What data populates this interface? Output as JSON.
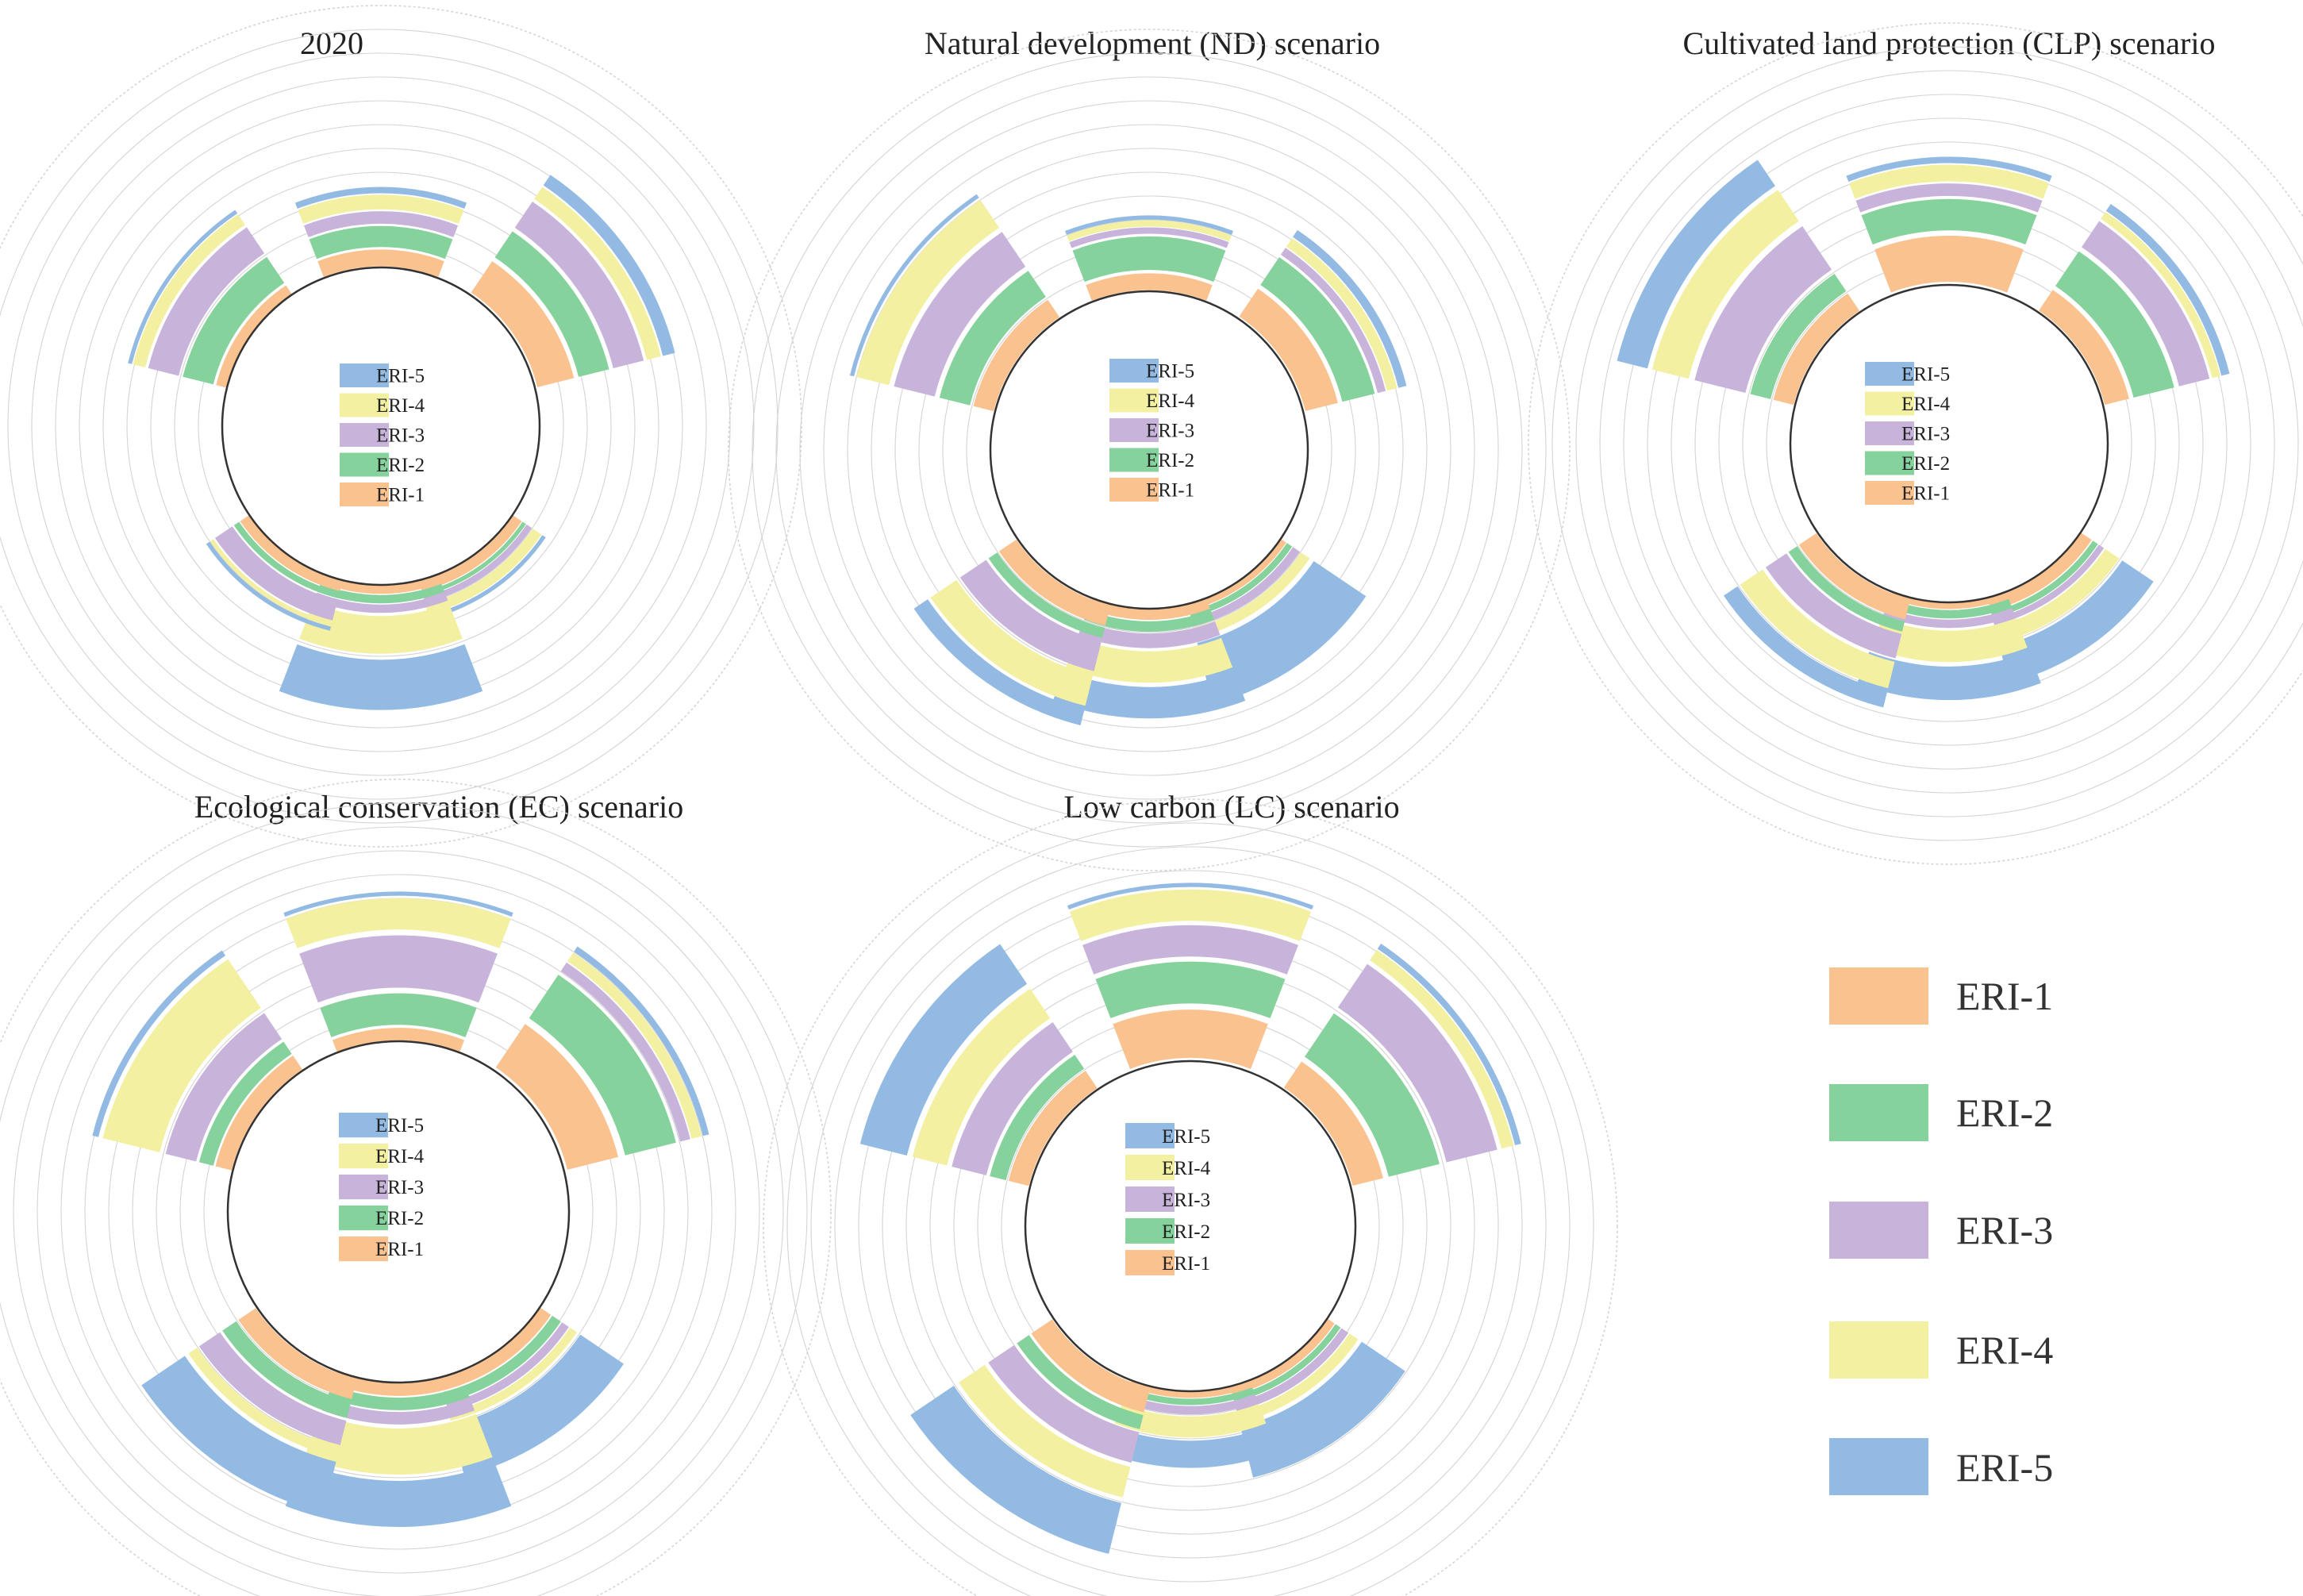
{
  "legend": [
    {
      "key": "ERI-1",
      "label": "ERI-1",
      "color": "#F9C28F"
    },
    {
      "key": "ERI-2",
      "label": "ERI-2",
      "color": "#86D29D"
    },
    {
      "key": "ERI-3",
      "label": "ERI-3",
      "color": "#C8B4DA"
    },
    {
      "key": "ERI-4",
      "label": "ERI-4",
      "color": "#F3F0A2"
    },
    {
      "key": "ERI-5",
      "label": "ERI-5",
      "color": "#92BAE3"
    }
  ],
  "chart_data": [
    {
      "type": "radial-stacked-bar",
      "title": "2020",
      "series": [
        "ERI-1",
        "ERI-2",
        "ERI-3",
        "ERI-4",
        "ERI-5"
      ],
      "sectors": [
        {
          "values": [
            0.8,
            1.0,
            0.6,
            0.7,
            0.3
          ]
        },
        {
          "values": [
            1.8,
            1.5,
            1.5,
            0.7,
            0.6
          ]
        },
        {
          "values": [
            0.5,
            0.2,
            0.3,
            0.5,
            0.2
          ]
        },
        {
          "values": [
            0.4,
            0.4,
            0.4,
            1.8,
            2.4
          ]
        },
        {
          "values": [
            0.5,
            0.3,
            1.0,
            0.2,
            0.2
          ]
        },
        {
          "values": [
            0.5,
            1.5,
            1.5,
            0.6,
            0.2
          ]
        }
      ]
    },
    {
      "type": "radial-stacked-bar",
      "title": "Natural development (ND) scenario",
      "series": [
        "ERI-1",
        "ERI-2",
        "ERI-3",
        "ERI-4",
        "ERI-5"
      ],
      "sectors": [
        {
          "values": [
            0.8,
            1.6,
            0.3,
            0.3,
            0.2
          ]
        },
        {
          "values": [
            1.6,
            1.6,
            0.4,
            0.5,
            0.4
          ]
        },
        {
          "values": [
            0.3,
            0.3,
            0.4,
            0.5,
            3.0
          ]
        },
        {
          "values": [
            0.5,
            0.5,
            0.7,
            1.5,
            1.5
          ]
        },
        {
          "values": [
            1.0,
            0.5,
            1.5,
            1.5,
            0.8
          ]
        },
        {
          "values": [
            1.0,
            1.5,
            2.0,
            1.6,
            0.2
          ]
        }
      ]
    },
    {
      "type": "radial-stacked-bar",
      "title": "Cultivated land protection (CLP) scenario",
      "series": [
        "ERI-1",
        "ERI-2",
        "ERI-3",
        "ERI-4",
        "ERI-5"
      ],
      "sectors": [
        {
          "values": [
            2.2,
            1.5,
            0.6,
            0.8,
            0.3
          ]
        },
        {
          "values": [
            1.2,
            2.0,
            1.5,
            0.4,
            0.4
          ]
        },
        {
          "values": [
            0.6,
            0.3,
            0.3,
            0.8,
            1.8
          ]
        },
        {
          "values": [
            0.3,
            0.4,
            0.4,
            1.5,
            1.6
          ]
        },
        {
          "values": [
            1.0,
            0.5,
            1.2,
            1.3,
            0.8
          ]
        },
        {
          "values": [
            1.0,
            1.0,
            2.5,
            1.8,
            1.5
          ]
        }
      ]
    },
    {
      "type": "radial-stacked-bar",
      "title": "Ecological conservation (EC) scenario",
      "series": [
        "ERI-1",
        "ERI-2",
        "ERI-3",
        "ERI-4",
        "ERI-5"
      ],
      "sectors": [
        {
          "values": [
            0.6,
            1.5,
            2.5,
            1.5,
            0.2
          ]
        },
        {
          "values": [
            2.5,
            2.5,
            0.5,
            0.5,
            0.3
          ]
        },
        {
          "values": [
            0.6,
            0.5,
            0.4,
            0.4,
            2.5
          ]
        },
        {
          "values": [
            0.6,
            0.6,
            0.6,
            2.2,
            2.2
          ]
        },
        {
          "values": [
            1.0,
            0.8,
            1.2,
            0.5,
            2.5
          ]
        },
        {
          "values": [
            0.8,
            0.7,
            1.5,
            2.8,
            0.3
          ]
        }
      ]
    },
    {
      "type": "radial-stacked-bar",
      "title": "Low carbon (LC) scenario",
      "series": [
        "ERI-1",
        "ERI-2",
        "ERI-3",
        "ERI-4",
        "ERI-5"
      ],
      "sectors": [
        {
          "values": [
            2.3,
            2.0,
            1.5,
            1.5,
            0.2
          ]
        },
        {
          "values": [
            1.5,
            2.5,
            2.5,
            0.6,
            0.3
          ]
        },
        {
          "values": [
            0.4,
            0.3,
            0.4,
            0.5,
            2.5
          ]
        },
        {
          "values": [
            0.3,
            0.3,
            0.4,
            1.0,
            1.3
          ]
        },
        {
          "values": [
            1.2,
            0.7,
            1.5,
            1.5,
            2.5
          ]
        },
        {
          "values": [
            1.0,
            0.8,
            1.7,
            1.7,
            2.3
          ]
        }
      ]
    }
  ]
}
